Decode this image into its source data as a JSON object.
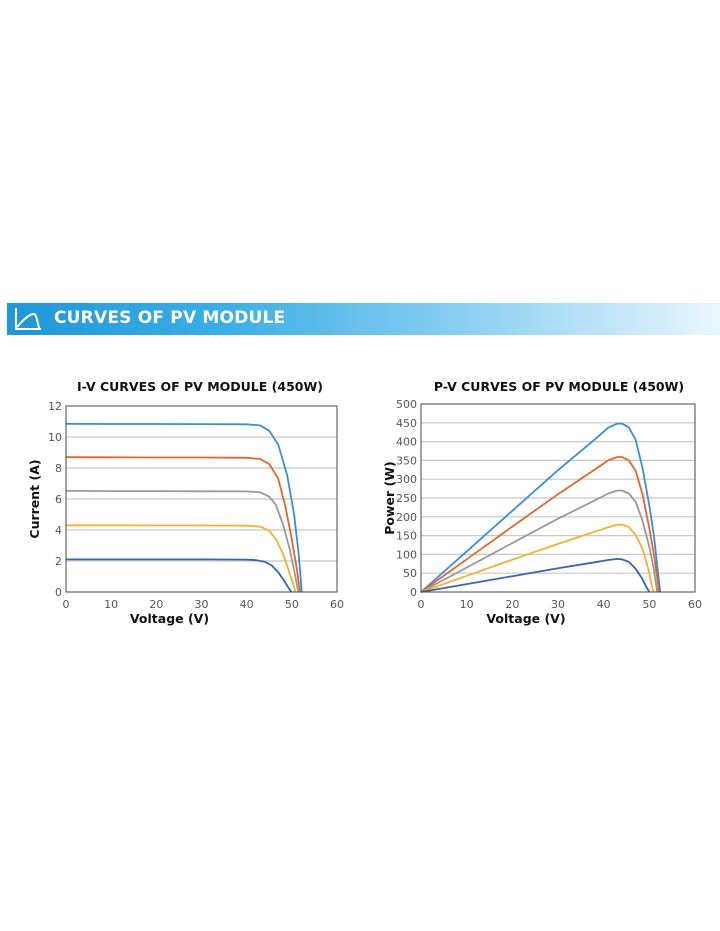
{
  "banner": {
    "title": "CURVES OF PV MODULE",
    "icon": "curve-chart-icon",
    "color": "#2a9fdc"
  },
  "chart_data": [
    {
      "type": "line",
      "title": "I-V CURVES OF PV MODULE (450W)",
      "xlabel": "Voltage (V)",
      "ylabel": "Current (A)",
      "xlim": [
        0,
        60
      ],
      "ylim": [
        0,
        12
      ],
      "xticks": [
        0,
        10,
        20,
        30,
        40,
        50,
        60
      ],
      "yticks": [
        0,
        2,
        4,
        6,
        8,
        10,
        12
      ],
      "grid": "horizontal",
      "series": [
        {
          "color": "#3b8fd0",
          "points": [
            [
              0,
              10.85
            ],
            [
              10,
              10.84
            ],
            [
              20,
              10.84
            ],
            [
              30,
              10.83
            ],
            [
              40,
              10.82
            ],
            [
              43,
              10.75
            ],
            [
              45,
              10.4
            ],
            [
              47,
              9.5
            ],
            [
              49,
              7.5
            ],
            [
              50.5,
              5.0
            ],
            [
              51.5,
              2.5
            ],
            [
              52.2,
              0
            ]
          ]
        },
        {
          "color": "#e2662d",
          "points": [
            [
              0,
              8.7
            ],
            [
              10,
              8.69
            ],
            [
              20,
              8.68
            ],
            [
              30,
              8.68
            ],
            [
              40,
              8.66
            ],
            [
              43,
              8.58
            ],
            [
              45,
              8.25
            ],
            [
              47,
              7.3
            ],
            [
              48.5,
              5.6
            ],
            [
              50,
              3.4
            ],
            [
              51.1,
              1.5
            ],
            [
              51.8,
              0
            ]
          ]
        },
        {
          "color": "#999999",
          "points": [
            [
              0,
              6.52
            ],
            [
              10,
              6.51
            ],
            [
              20,
              6.51
            ],
            [
              30,
              6.5
            ],
            [
              40,
              6.49
            ],
            [
              43,
              6.43
            ],
            [
              45,
              6.15
            ],
            [
              46.5,
              5.6
            ],
            [
              48,
              4.4
            ],
            [
              49.5,
              2.8
            ],
            [
              50.8,
              1.0
            ],
            [
              51.4,
              0
            ]
          ]
        },
        {
          "color": "#f4b130",
          "points": [
            [
              0,
              4.3
            ],
            [
              10,
              4.3
            ],
            [
              20,
              4.29
            ],
            [
              30,
              4.29
            ],
            [
              40,
              4.28
            ],
            [
              43,
              4.22
            ],
            [
              45,
              3.95
            ],
            [
              46.5,
              3.4
            ],
            [
              48,
              2.5
            ],
            [
              49.3,
              1.4
            ],
            [
              50.3,
              0.5
            ],
            [
              50.8,
              0
            ]
          ]
        },
        {
          "color": "#3a63b4",
          "points": [
            [
              0,
              2.1
            ],
            [
              10,
              2.1
            ],
            [
              20,
              2.1
            ],
            [
              30,
              2.1
            ],
            [
              40,
              2.09
            ],
            [
              42,
              2.06
            ],
            [
              44,
              1.95
            ],
            [
              45.5,
              1.72
            ],
            [
              47,
              1.28
            ],
            [
              48.3,
              0.72
            ],
            [
              49.3,
              0.25
            ],
            [
              49.9,
              0
            ]
          ]
        }
      ]
    },
    {
      "type": "line",
      "title": "P-V CURVES OF PV MODULE (450W)",
      "xlabel": "Voltage (V)",
      "ylabel": "Power (W)",
      "xlim": [
        0,
        60
      ],
      "ylim": [
        0,
        500
      ],
      "xticks": [
        0,
        10,
        20,
        30,
        40,
        50,
        60
      ],
      "yticks": [
        0,
        50,
        100,
        150,
        200,
        250,
        300,
        350,
        400,
        450,
        500
      ],
      "grid": "horizontal",
      "series": [
        {
          "color": "#3b8fd0",
          "points": [
            [
              0,
              0
            ],
            [
              10,
              108
            ],
            [
              20,
              216
            ],
            [
              30,
              324
            ],
            [
              38,
              405
            ],
            [
              41,
              437
            ],
            [
              43,
              448
            ],
            [
              44,
              448
            ],
            [
              45.5,
              438
            ],
            [
              47,
              405
            ],
            [
              48.5,
              330
            ],
            [
              50,
              230
            ],
            [
              51,
              150
            ],
            [
              52,
              40
            ],
            [
              52.4,
              0
            ]
          ]
        },
        {
          "color": "#e2662d",
          "points": [
            [
              0,
              0
            ],
            [
              10,
              87
            ],
            [
              20,
              174
            ],
            [
              30,
              260
            ],
            [
              38,
              325
            ],
            [
              41,
              350
            ],
            [
              43,
              359
            ],
            [
              44,
              359
            ],
            [
              45.5,
              350
            ],
            [
              47,
              323
            ],
            [
              48.5,
              260
            ],
            [
              50,
              170
            ],
            [
              51,
              100
            ],
            [
              51.8,
              30
            ],
            [
              52.1,
              0
            ]
          ]
        },
        {
          "color": "#999999",
          "points": [
            [
              0,
              0
            ],
            [
              10,
              65
            ],
            [
              20,
              130
            ],
            [
              30,
              195
            ],
            [
              38,
              243
            ],
            [
              41,
              262
            ],
            [
              43,
              270
            ],
            [
              44,
              270
            ],
            [
              45.5,
              262
            ],
            [
              47,
              240
            ],
            [
              48.5,
              190
            ],
            [
              50,
              120
            ],
            [
              51,
              60
            ],
            [
              51.6,
              10
            ],
            [
              51.7,
              0
            ]
          ]
        },
        {
          "color": "#f4b130",
          "points": [
            [
              0,
              0
            ],
            [
              10,
              43
            ],
            [
              20,
              86
            ],
            [
              30,
              128
            ],
            [
              38,
              160
            ],
            [
              41,
              172
            ],
            [
              43,
              179
            ],
            [
              44,
              179
            ],
            [
              45.5,
              173
            ],
            [
              47,
              152
            ],
            [
              48.5,
              115
            ],
            [
              49.8,
              60
            ],
            [
              50.5,
              20
            ],
            [
              50.9,
              0
            ]
          ]
        },
        {
          "color": "#3a63b4",
          "points": [
            [
              0,
              0
            ],
            [
              10,
              21
            ],
            [
              20,
              42
            ],
            [
              30,
              63
            ],
            [
              38,
              79
            ],
            [
              41,
              85
            ],
            [
              43,
              88
            ],
            [
              44,
              87
            ],
            [
              45.5,
              80
            ],
            [
              47,
              62
            ],
            [
              48.3,
              38
            ],
            [
              49.3,
              15
            ],
            [
              50,
              0
            ]
          ]
        }
      ]
    }
  ]
}
